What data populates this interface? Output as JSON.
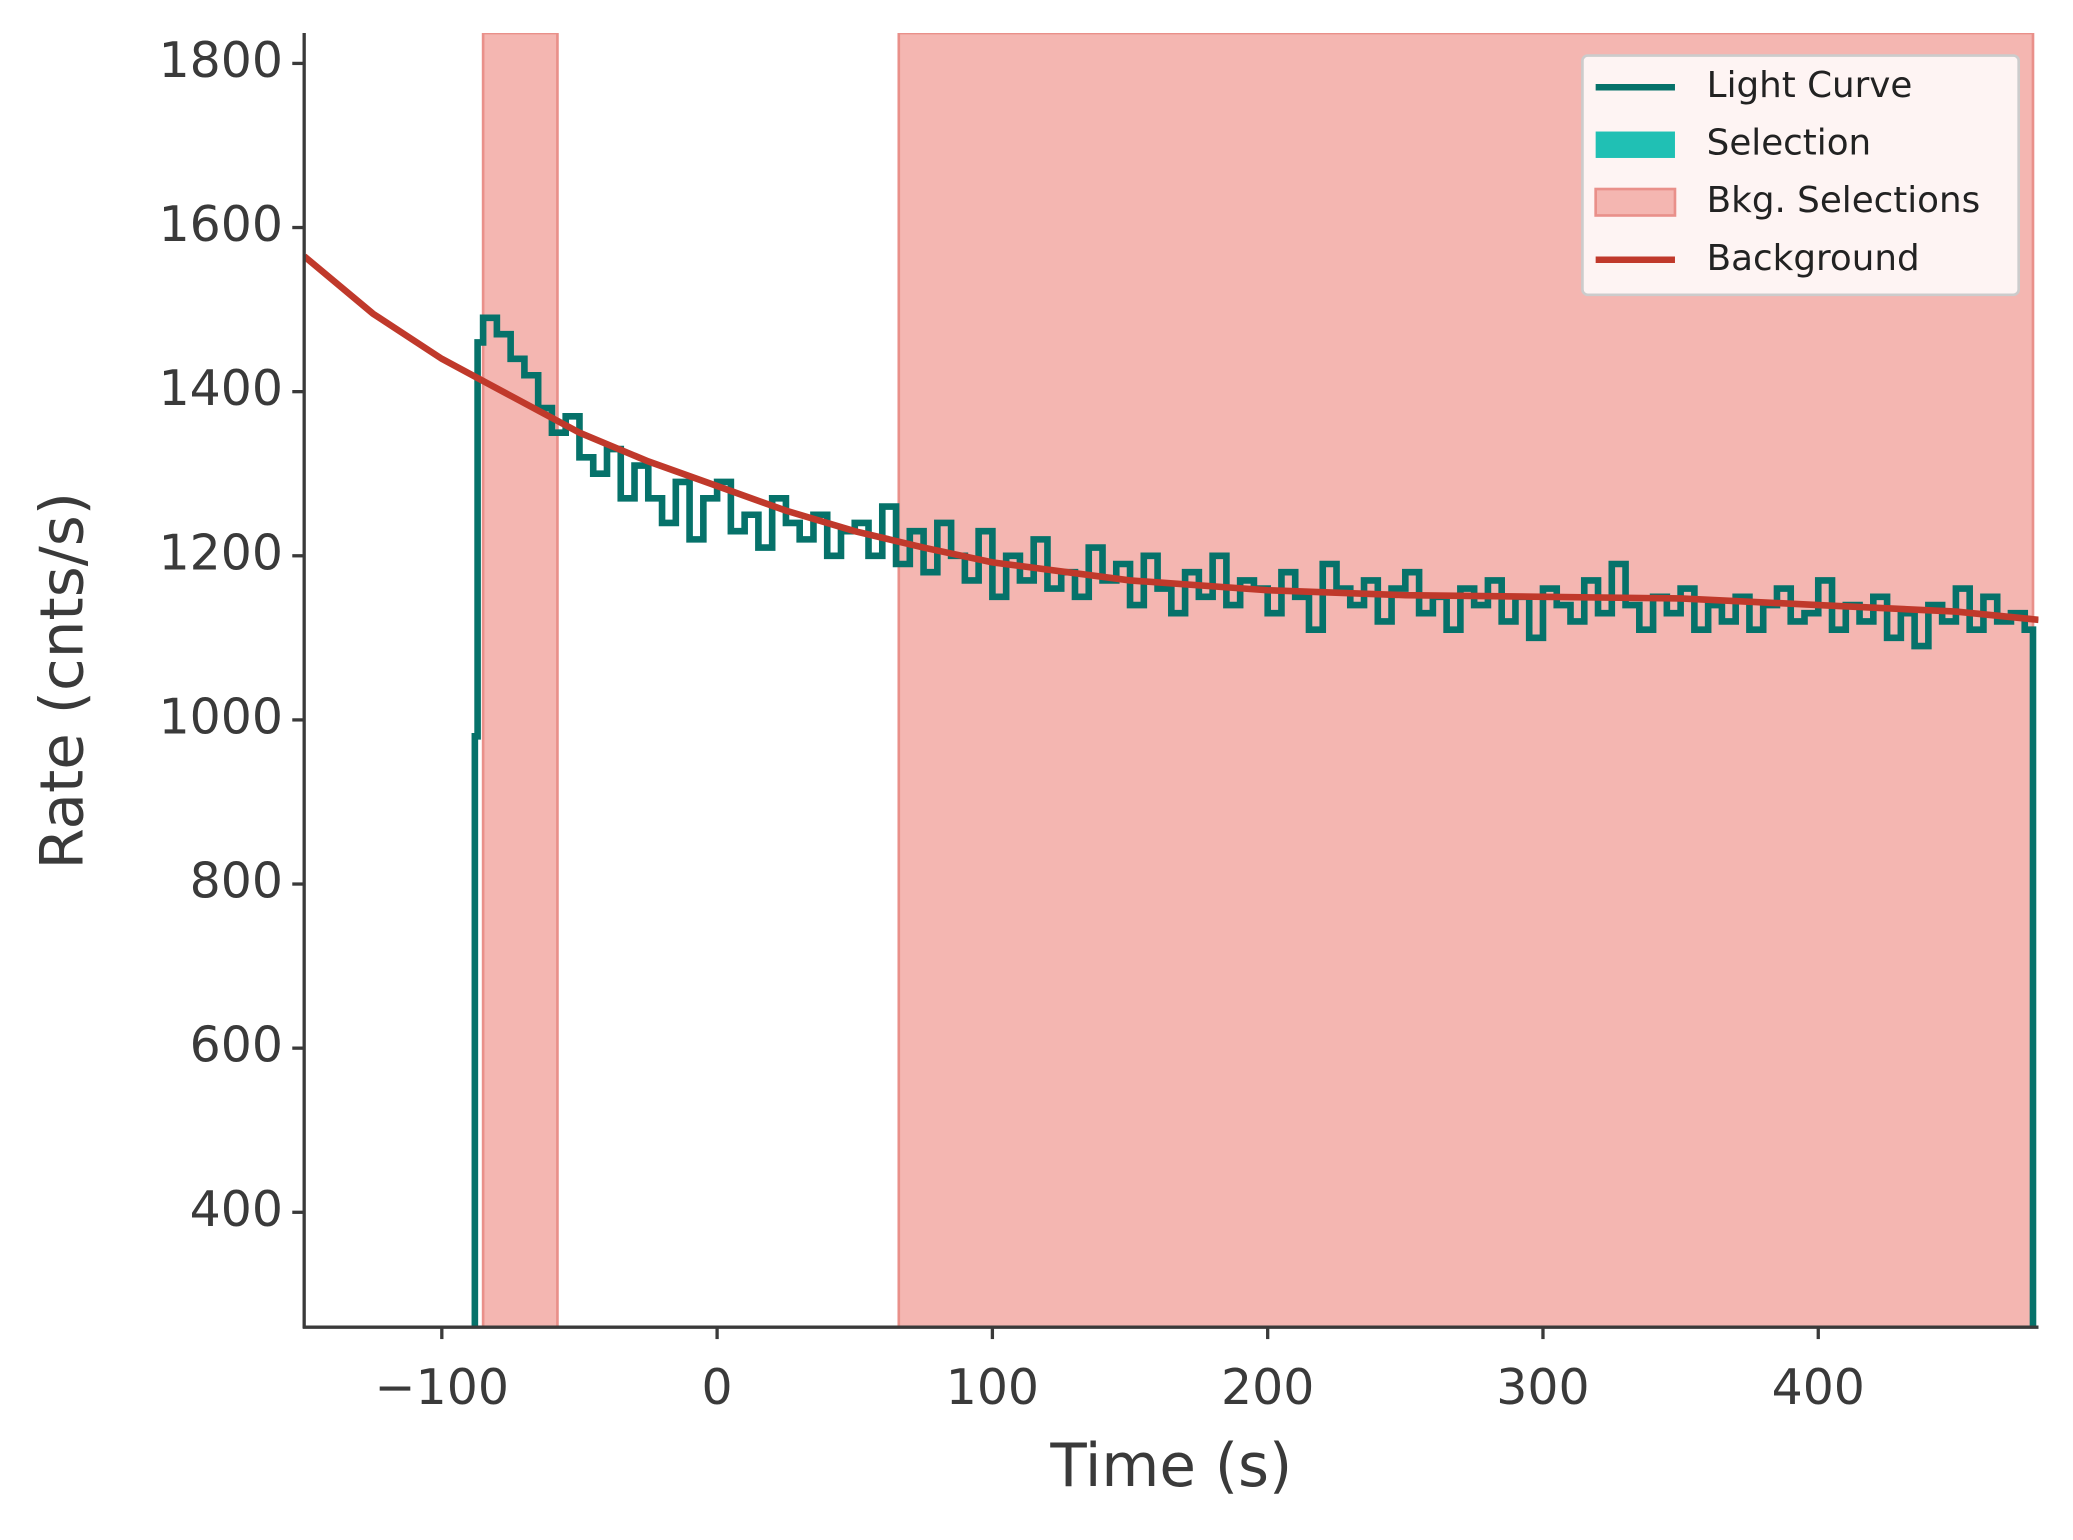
{
  "chart_data": {
    "type": "line",
    "xlabel": "Time (s)",
    "ylabel": "Rate (cnts/s)",
    "xlim": [
      -150,
      480
    ],
    "ylim": [
      260,
      1837
    ],
    "xticks": [
      {
        "value": -100,
        "label": "−100"
      },
      0,
      100,
      200,
      300,
      400
    ],
    "yticks": [
      400,
      600,
      800,
      1000,
      1200,
      1400,
      1600,
      1800
    ],
    "legend": "upper right",
    "series": [
      {
        "name": "Light Curve",
        "color": "#06726a",
        "style": "step",
        "x": [
          -89,
          -88,
          -87,
          -85,
          -80,
          -75,
          -70,
          -65,
          -60,
          -55,
          -50,
          -45,
          -40,
          -35,
          -30,
          -25,
          -20,
          -15,
          -10,
          -5,
          0,
          5,
          10,
          15,
          20,
          25,
          30,
          35,
          40,
          45,
          50,
          55,
          60,
          65,
          70,
          75,
          80,
          85,
          90,
          95,
          100,
          105,
          110,
          115,
          120,
          125,
          130,
          135,
          140,
          145,
          150,
          155,
          160,
          165,
          170,
          175,
          180,
          185,
          190,
          195,
          200,
          205,
          210,
          215,
          220,
          225,
          230,
          235,
          240,
          245,
          250,
          255,
          260,
          265,
          270,
          275,
          280,
          285,
          290,
          295,
          300,
          305,
          310,
          315,
          320,
          325,
          330,
          335,
          340,
          345,
          350,
          355,
          360,
          365,
          370,
          375,
          380,
          385,
          390,
          395,
          400,
          405,
          410,
          415,
          420,
          425,
          430,
          435,
          440,
          445,
          450,
          455,
          460,
          465,
          470,
          475,
          478
        ],
        "values": [
          0,
          980,
          1460,
          1490,
          1470,
          1440,
          1420,
          1380,
          1350,
          1370,
          1320,
          1300,
          1330,
          1270,
          1310,
          1270,
          1240,
          1290,
          1220,
          1270,
          1290,
          1230,
          1250,
          1210,
          1270,
          1240,
          1220,
          1250,
          1200,
          1230,
          1240,
          1200,
          1260,
          1190,
          1230,
          1180,
          1240,
          1200,
          1170,
          1230,
          1150,
          1200,
          1170,
          1220,
          1160,
          1180,
          1150,
          1210,
          1170,
          1190,
          1140,
          1200,
          1160,
          1130,
          1180,
          1150,
          1200,
          1140,
          1170,
          1160,
          1130,
          1180,
          1150,
          1110,
          1190,
          1160,
          1140,
          1170,
          1120,
          1160,
          1180,
          1130,
          1150,
          1110,
          1160,
          1140,
          1170,
          1120,
          1150,
          1100,
          1160,
          1140,
          1120,
          1170,
          1130,
          1190,
          1140,
          1110,
          1150,
          1130,
          1160,
          1110,
          1140,
          1120,
          1150,
          1110,
          1140,
          1160,
          1120,
          1130,
          1170,
          1110,
          1140,
          1120,
          1150,
          1100,
          1130,
          1090,
          1140,
          1120,
          1160,
          1110,
          1150,
          1120,
          1130,
          1110,
          0
        ]
      },
      {
        "name": "Selection",
        "color": "#20c0b4",
        "style": "patch"
      },
      {
        "name": "Bkg. Selections",
        "color": "#f4b6b1",
        "edgecolor": "#e9908a",
        "style": "patch",
        "ranges": [
          [
            -85,
            -58
          ],
          [
            66,
            478
          ]
        ]
      },
      {
        "name": "Background",
        "color": "#c0392b",
        "style": "line",
        "x": [
          -150,
          -125,
          -100,
          -75,
          -50,
          -25,
          0,
          25,
          50,
          75,
          100,
          150,
          200,
          250,
          300,
          350,
          400,
          450,
          480
        ],
        "values": [
          1565,
          1495,
          1440,
          1395,
          1350,
          1315,
          1285,
          1255,
          1230,
          1210,
          1192,
          1170,
          1158,
          1152,
          1150,
          1148,
          1140,
          1132,
          1122
        ]
      }
    ]
  }
}
